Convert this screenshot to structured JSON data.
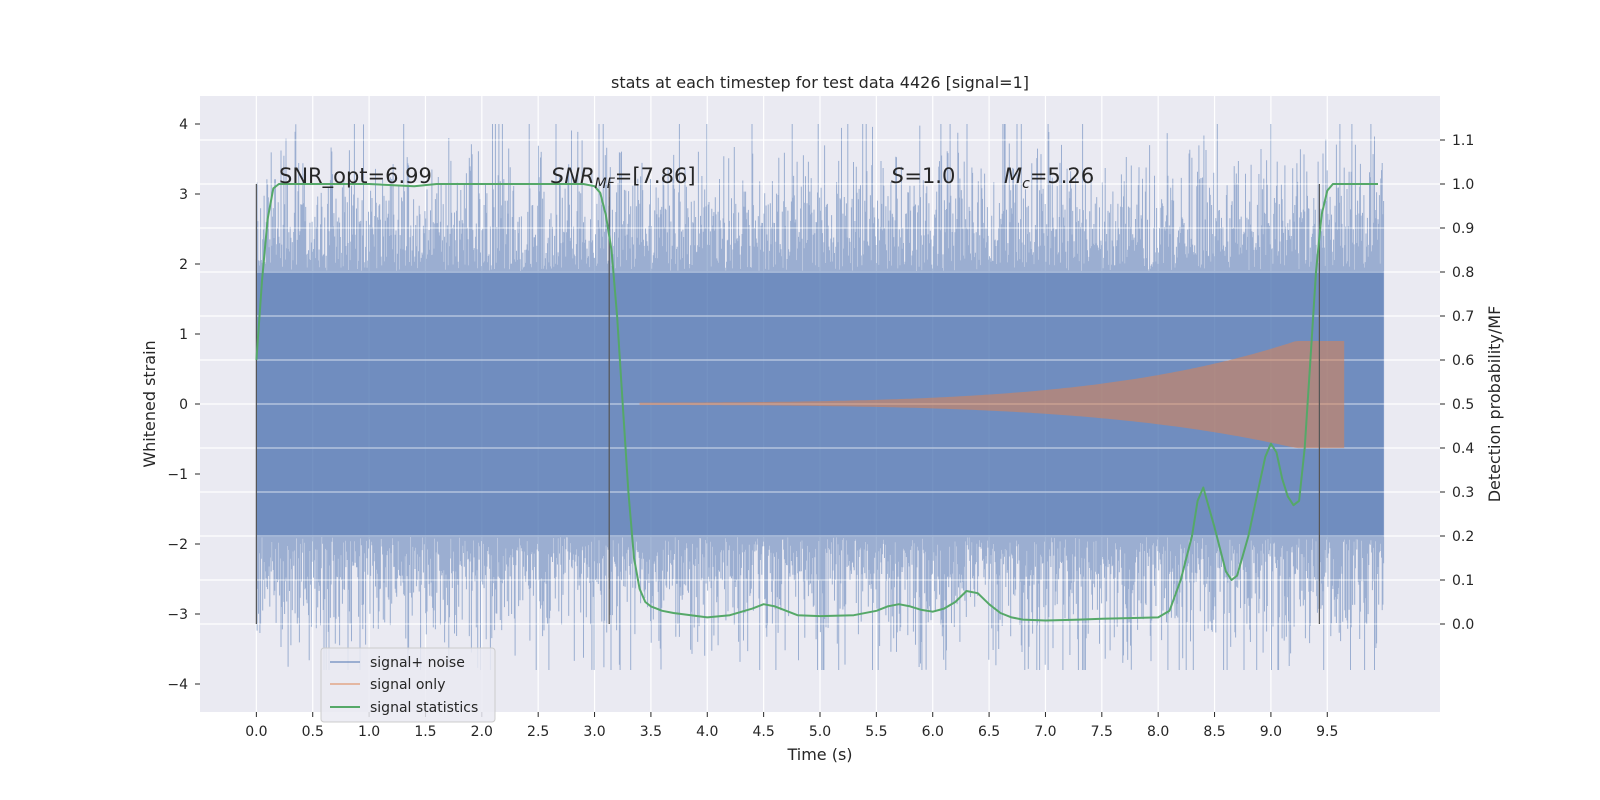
{
  "chart_data": {
    "type": "line",
    "title": "stats at each timestep for test data 4426 [signal=1]",
    "xlabel": "Time (s)",
    "ylabel": "Whitened strain",
    "y2label": "Detection probability/MF",
    "xlim": [
      -0.5,
      10.5
    ],
    "ylim": [
      -4.4,
      4.4
    ],
    "y2lim": [
      -0.2,
      1.2
    ],
    "xticks": [
      "0.0",
      "0.5",
      "1.0",
      "1.5",
      "2.0",
      "2.5",
      "3.0",
      "3.5",
      "4.0",
      "4.5",
      "5.0",
      "5.5",
      "6.0",
      "6.5",
      "7.0",
      "7.5",
      "8.0",
      "8.5",
      "9.0",
      "9.5"
    ],
    "yticks": [
      "4",
      "3",
      "2",
      "1",
      "0",
      "−1",
      "−2",
      "−3",
      "−4"
    ],
    "y2ticks": [
      "1.1",
      "1.0",
      "0.9",
      "0.8",
      "0.7",
      "0.6",
      "0.5",
      "0.4",
      "0.3",
      "0.2",
      "0.1",
      "0.0"
    ],
    "grid": true,
    "legend_position": "lower-left",
    "annotations": {
      "snr_opt": "SNR_opt=6.99",
      "snr_mf_base": "SNR",
      "snr_mf_sub": "MF",
      "snr_mf_value": "=[7.86]",
      "s_symbol": "S",
      "s_value": "=1.0",
      "mc_base": "M",
      "mc_sub": "c",
      "mc_value": "=5.26"
    },
    "vertical_markers_x": [
      0.0,
      3.13,
      9.43
    ],
    "series": [
      {
        "name": "signal+ noise",
        "color": "#4c72b0",
        "description": "whitened noise plus signal, roughly -3.5 to 3.5 spanning 0 to 10 s",
        "x_range": [
          0.0,
          10.0
        ],
        "typical_envelope": 2.6
      },
      {
        "name": "signal only",
        "color": "#dd8452",
        "x_range": [
          3.4,
          9.65
        ],
        "amplitude_start": 0.02,
        "amplitude_end": 0.9
      },
      {
        "name": "signal statistics",
        "color": "#55a868",
        "axis": "right",
        "x": [
          0.0,
          0.05,
          0.1,
          0.15,
          0.2,
          0.3,
          0.5,
          1.0,
          1.4,
          1.6,
          2.0,
          2.5,
          2.9,
          3.0,
          3.05,
          3.1,
          3.15,
          3.2,
          3.25,
          3.3,
          3.35,
          3.4,
          3.45,
          3.5,
          3.55,
          3.6,
          3.7,
          4.0,
          4.2,
          4.4,
          4.5,
          4.6,
          4.8,
          5.0,
          5.3,
          5.5,
          5.6,
          5.7,
          5.8,
          5.9,
          6.0,
          6.1,
          6.2,
          6.3,
          6.4,
          6.5,
          6.6,
          6.7,
          6.8,
          7.0,
          7.3,
          7.5,
          8.0,
          8.1,
          8.2,
          8.3,
          8.35,
          8.4,
          8.5,
          8.6,
          8.65,
          8.7,
          8.8,
          8.9,
          8.95,
          9.0,
          9.05,
          9.1,
          9.15,
          9.2,
          9.25,
          9.3,
          9.35,
          9.4,
          9.45,
          9.5,
          9.55,
          9.6,
          9.7,
          9.95
        ],
        "y": [
          0.6,
          0.78,
          0.92,
          0.99,
          1.0,
          1.0,
          1.0,
          1.0,
          0.995,
          1.0,
          1.0,
          1.0,
          1.0,
          0.995,
          0.98,
          0.93,
          0.85,
          0.7,
          0.5,
          0.3,
          0.15,
          0.08,
          0.05,
          0.04,
          0.035,
          0.03,
          0.025,
          0.015,
          0.02,
          0.035,
          0.045,
          0.04,
          0.02,
          0.018,
          0.02,
          0.03,
          0.04,
          0.045,
          0.04,
          0.032,
          0.028,
          0.035,
          0.05,
          0.075,
          0.07,
          0.045,
          0.025,
          0.015,
          0.01,
          0.008,
          0.01,
          0.012,
          0.015,
          0.03,
          0.1,
          0.2,
          0.28,
          0.31,
          0.22,
          0.12,
          0.1,
          0.11,
          0.2,
          0.32,
          0.38,
          0.41,
          0.39,
          0.33,
          0.29,
          0.27,
          0.28,
          0.4,
          0.6,
          0.8,
          0.93,
          0.985,
          1.0,
          1.0,
          1.0,
          1.0
        ]
      }
    ]
  }
}
